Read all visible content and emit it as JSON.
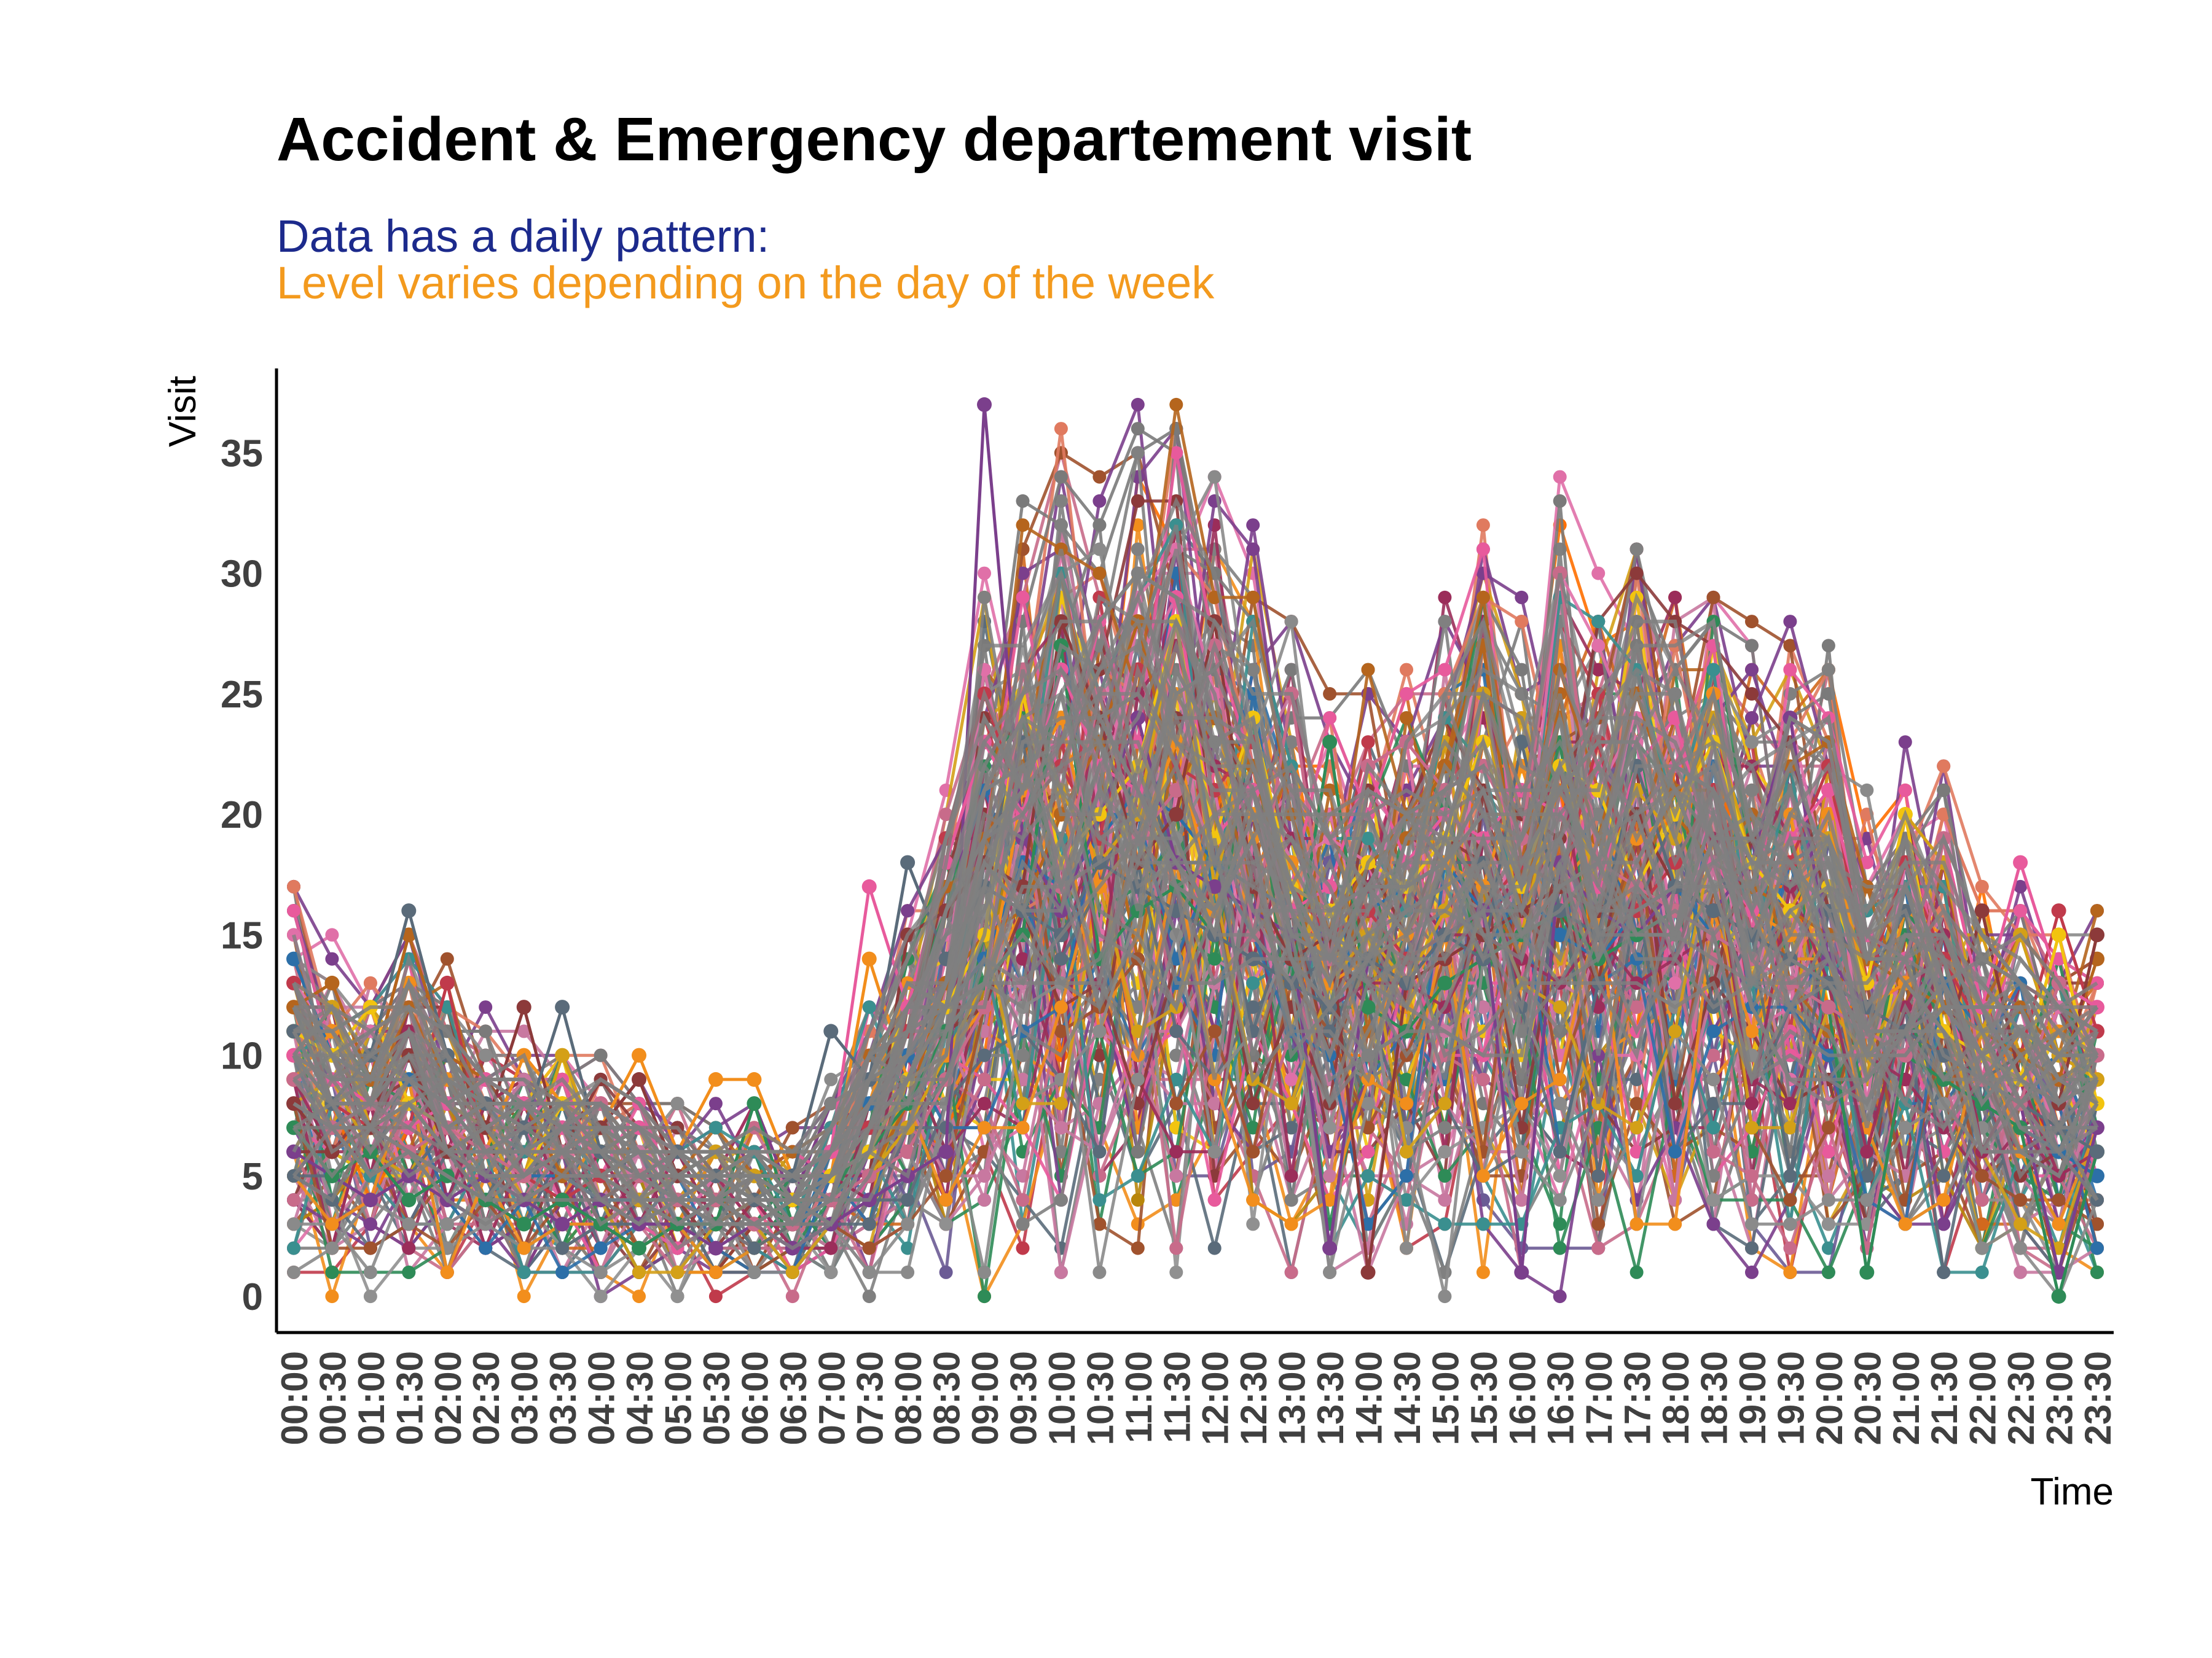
{
  "chart_data": {
    "type": "line",
    "title": "Accident & Emergency departement visit",
    "subtitle_lines": [
      {
        "text": "Data has a daily pattern:",
        "color": "#1c2a8c"
      },
      {
        "text": "Level varies depending on the day of the week",
        "color": "#f39a1e"
      }
    ],
    "xlabel": "Time",
    "ylabel": "Visit",
    "ylim": [
      -1.5,
      38.5
    ],
    "yticks": [
      0,
      5,
      10,
      15,
      20,
      25,
      30,
      35
    ],
    "grid": false,
    "legend": "none",
    "categories": [
      "00:00",
      "00:30",
      "01:00",
      "01:30",
      "02:00",
      "02:30",
      "03:00",
      "03:30",
      "04:00",
      "04:30",
      "05:00",
      "05:30",
      "06:00",
      "06:30",
      "07:00",
      "07:30",
      "08:00",
      "08:30",
      "09:00",
      "09:30",
      "10:00",
      "10:30",
      "11:00",
      "11:30",
      "12:00",
      "12:30",
      "13:00",
      "13:30",
      "14:00",
      "14:30",
      "15:00",
      "15:30",
      "16:00",
      "16:30",
      "17:00",
      "17:30",
      "18:00",
      "18:30",
      "19:00",
      "19:30",
      "20:00",
      "20:30",
      "21:00",
      "21:30",
      "22:00",
      "22:30",
      "23:00",
      "23:30"
    ],
    "colors": [
      "#2c6fa8",
      "#c03a4b",
      "#b5651d",
      "#d4a017",
      "#f28e1c",
      "#7b3f8c",
      "#8c3a3a",
      "#2e8b57",
      "#e85a9c",
      "#f2c40f",
      "#5a6b7a",
      "#c86b8a",
      "#a0522d",
      "#d2691e",
      "#9b2d5a",
      "#3a8f8f",
      "#e07a5f",
      "#6b5b95",
      "#ff6f00",
      "#b8860b"
    ],
    "background_color": "#808080",
    "series": [
      {
        "values": [
          14,
          10,
          9,
          9,
          8,
          6,
          5,
          5,
          4,
          4,
          5,
          5,
          4,
          5,
          6,
          8,
          10,
          12,
          14,
          18,
          17,
          19,
          21,
          20,
          18,
          17,
          16,
          15,
          16,
          17,
          18,
          16,
          17,
          15,
          14,
          16,
          17,
          15,
          14,
          13,
          12,
          11,
          10,
          9,
          8,
          7,
          6,
          5
        ]
      },
      {
        "values": [
          13,
          8,
          7,
          7,
          13,
          6,
          5,
          4,
          5,
          4,
          3,
          3,
          3,
          4,
          5,
          7,
          11,
          19,
          25,
          20,
          22,
          19,
          26,
          22,
          21,
          23,
          17,
          15,
          16,
          14,
          15,
          16,
          18,
          17,
          23,
          16,
          18,
          21,
          15,
          18,
          22,
          13,
          18,
          14,
          11,
          10,
          16,
          11
        ]
      },
      {
        "values": [
          12,
          13,
          9,
          15,
          10,
          9,
          8,
          5,
          7,
          5,
          4,
          3,
          4,
          3,
          4,
          5,
          8,
          13,
          15,
          16,
          20,
          23,
          28,
          21,
          24,
          22,
          16,
          15,
          18,
          19,
          22,
          27,
          16,
          24,
          19,
          25,
          20,
          18,
          17,
          16,
          15,
          14,
          13,
          12,
          11,
          10,
          9,
          14
        ]
      },
      {
        "values": [
          10,
          12,
          7,
          8,
          6,
          7,
          5,
          10,
          6,
          4,
          5,
          6,
          5,
          4,
          4,
          5,
          7,
          10,
          13,
          25,
          21,
          18,
          20,
          28,
          17,
          24,
          16,
          14,
          15,
          13,
          16,
          25,
          15,
          22,
          17,
          21,
          19,
          24,
          18,
          16,
          19,
          13,
          20,
          18,
          11,
          15,
          10,
          9
        ]
      },
      {
        "values": [
          9,
          11,
          8,
          13,
          9,
          6,
          10,
          8,
          7,
          10,
          6,
          9,
          9,
          5,
          5,
          14,
          9,
          10,
          12,
          21,
          24,
          17,
          19,
          23,
          16,
          20,
          18,
          13,
          14,
          15,
          18,
          17,
          22,
          17,
          18,
          19,
          20,
          25,
          16,
          15,
          20,
          12,
          13,
          11,
          9,
          8,
          7,
          6
        ]
      },
      {
        "values": [
          6,
          5,
          4,
          5,
          4,
          5,
          4,
          3,
          4,
          3,
          3,
          2,
          3,
          2,
          3,
          4,
          5,
          6,
          37,
          19,
          16,
          20,
          24,
          18,
          17,
          16,
          15,
          2,
          14,
          13,
          15,
          16,
          1,
          18,
          16,
          15,
          17,
          16,
          18,
          24,
          14,
          12,
          11,
          10,
          9,
          8,
          1,
          7
        ]
      },
      {
        "values": [
          8,
          6,
          7,
          10,
          6,
          7,
          12,
          6,
          7,
          9,
          5,
          4,
          4,
          3,
          4,
          5,
          15,
          16,
          18,
          17,
          28,
          24,
          18,
          20,
          28,
          17,
          14,
          15,
          1,
          13,
          14,
          15,
          16,
          17,
          16,
          20,
          17,
          16,
          15,
          14,
          13,
          12,
          11,
          10,
          16,
          9,
          8,
          15
        ]
      },
      {
        "values": [
          7,
          5,
          6,
          4,
          5,
          4,
          3,
          4,
          3,
          2,
          3,
          3,
          8,
          3,
          4,
          6,
          8,
          11,
          13,
          15,
          27,
          14,
          16,
          17,
          15,
          14,
          13,
          23,
          12,
          11,
          13,
          14,
          15,
          16,
          14,
          15,
          16,
          15,
          14,
          13,
          12,
          1,
          10,
          9,
          8,
          7,
          0,
          6
        ]
      },
      {
        "values": [
          10,
          9,
          8,
          7,
          8,
          9,
          8,
          7,
          8,
          7,
          6,
          5,
          4,
          5,
          6,
          17,
          12,
          18,
          23,
          20,
          26,
          22,
          21,
          29,
          19,
          21,
          16,
          17,
          22,
          18,
          20,
          19,
          21,
          20,
          17,
          22,
          24,
          18,
          16,
          19,
          21,
          15,
          14,
          19,
          12,
          18,
          13,
          12
        ]
      },
      {
        "values": [
          11,
          10,
          12,
          8,
          7,
          6,
          5,
          8,
          6,
          5,
          4,
          4,
          3,
          4,
          5,
          6,
          9,
          12,
          15,
          25,
          18,
          20,
          22,
          28,
          19,
          24,
          17,
          16,
          18,
          17,
          19,
          23,
          17,
          22,
          21,
          17,
          20,
          23,
          18,
          16,
          17,
          13,
          20,
          11,
          10,
          9,
          15,
          8
        ]
      },
      {
        "values": [
          11,
          8,
          10,
          16,
          10,
          8,
          7,
          12,
          6,
          5,
          6,
          5,
          4,
          5,
          11,
          9,
          18,
          14,
          17,
          16,
          15,
          18,
          17,
          16,
          15,
          14,
          13,
          12,
          14,
          13,
          15,
          14,
          23,
          16,
          15,
          22,
          17,
          16,
          15,
          14,
          13,
          12,
          11,
          10,
          9,
          8,
          7,
          6
        ]
      },
      {
        "values": [
          9,
          7,
          8,
          6,
          7,
          6,
          5,
          6,
          8,
          5,
          4,
          4,
          3,
          3,
          4,
          5,
          6,
          9,
          12,
          26,
          17,
          25,
          19,
          21,
          27,
          15,
          25,
          14,
          22,
          23,
          21,
          22,
          19,
          30,
          18,
          17,
          16,
          15,
          14,
          13,
          12,
          11,
          10,
          19,
          9,
          8,
          13,
          10
        ]
      }
    ]
  }
}
